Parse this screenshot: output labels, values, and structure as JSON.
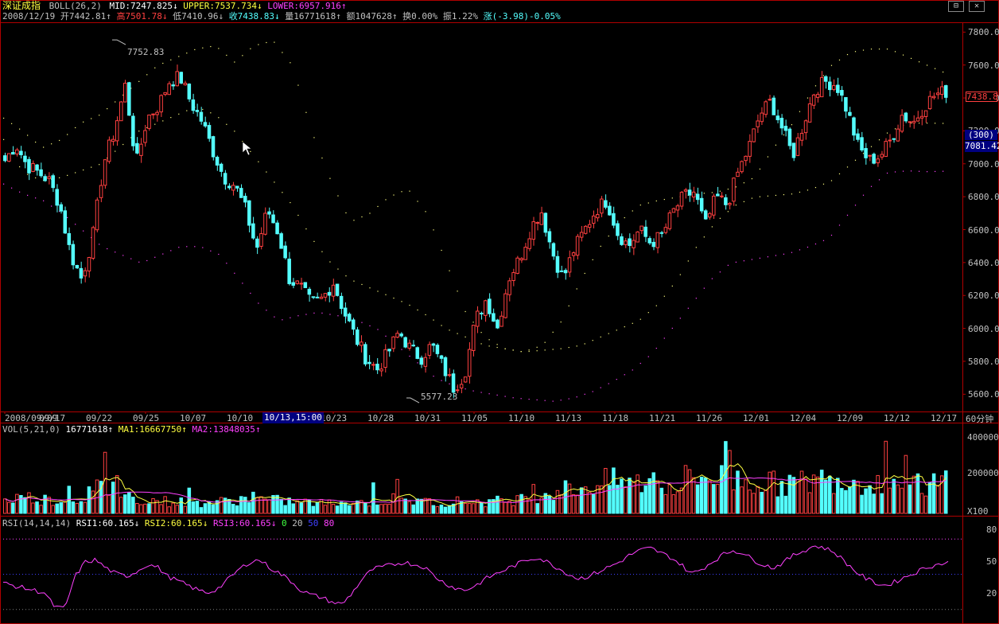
{
  "header": {
    "symbol": "深证成指",
    "indicator": "BOLL(26,2)",
    "mid_label": "MID:7247.825",
    "upper_label": "UPPER:7537.734",
    "lower_label": "LOWER:6957.916",
    "arrow_down": "↓",
    "arrow_up": "↑"
  },
  "info": {
    "date": "2008/12/19",
    "open": "开7442.81",
    "high": "高7501.78",
    "low": "低7410.96",
    "close": "收7438.83",
    "vol": "量16771618",
    "amount": "额1047628",
    "turnover": "换0.00%",
    "amplitude": "振1.22%",
    "change": "涨(-3.98)-0.05%",
    "arrow_down": "↓",
    "arrow_up": "↑"
  },
  "window_controls": {
    "restore": "⊟",
    "close": "✕"
  },
  "price_axis": {
    "ticks": [
      "7800.00",
      "7600.00",
      "7400.00",
      "7200.00",
      "7000.00",
      "6800.00",
      "6600.00",
      "6400.00",
      "6200.00",
      "6000.00",
      "5800.00",
      "5600.00"
    ],
    "current_price": "7438.8",
    "period_box": "(300)",
    "cursor_value": "7081.42"
  },
  "annotations": {
    "high_label": "7752.83",
    "low_label": "5577.23"
  },
  "date_axis": {
    "labels": [
      "2008/09/09",
      "09/17",
      "09/22",
      "09/25",
      "10/07",
      "10/10",
      "10/20",
      "10/23",
      "10/28",
      "10/31",
      "11/05",
      "11/10",
      "11/13",
      "11/18",
      "11/21",
      "11/26",
      "12/01",
      "12/04",
      "12/09",
      "12/12",
      "12/17"
    ],
    "cursor_label": "10/13,15:00",
    "period": "60分钟"
  },
  "volume_panel": {
    "label": "VOL(5,21,0)",
    "vol_value": "16771618",
    "ma1": "MA1:16667750",
    "ma2": "MA2:13848035",
    "arrow_up": "↑",
    "ticks": [
      "400000",
      "200000"
    ],
    "unit": "X100"
  },
  "rsi_panel": {
    "label": "RSI(14,14,14)",
    "rsi1": "RSI1:60.165",
    "rsi2": "RSI2:60.165",
    "rsi3": "RSI3:60.165",
    "arrow_down": "↓",
    "arrow_up": "↑",
    "lvl0": "0",
    "lvl20": "20",
    "lvl50": "50",
    "lvl80": "80",
    "ticks": [
      "80",
      "50",
      "20"
    ]
  },
  "colors": {
    "up": "#ff4040",
    "down": "#54ffff",
    "mid": "#ffff80",
    "upper": "#ffff80",
    "lower": "#ff40ff",
    "frame": "#b00000",
    "rsi": "#ff40ff",
    "ma1": "#ffff40",
    "ma2": "#ff40ff",
    "axis_text": "#c0c0c0",
    "label_yellow": "#ffff40",
    "label_magenta": "#ff40ff",
    "label_red": "#ff4040",
    "label_cyan": "#54ffff",
    "label_green": "#40ff40",
    "label_blue": "#4040ff"
  },
  "chart_data": {
    "type": "candlestick",
    "title": "深证成指 BOLL(26,2)",
    "period": "60分钟",
    "y_range": [
      5500,
      7850
    ],
    "date_labels": [
      "2008/09/09",
      "09/17",
      "09/22",
      "09/25",
      "10/07",
      "10/10",
      "10/20",
      "10/23",
      "10/28",
      "10/31",
      "11/05",
      "11/10",
      "11/13",
      "11/18",
      "11/21",
      "11/26",
      "12/01",
      "12/04",
      "12/09",
      "12/12",
      "12/17"
    ],
    "close_path": [
      7020,
      7120,
      6990,
      6950,
      6900,
      6750,
      6450,
      6300,
      6550,
      7000,
      7200,
      7480,
      7000,
      7280,
      7350,
      7500,
      7530,
      7370,
      7260,
      7080,
      6920,
      6870,
      6720,
      6480,
      6720,
      6580,
      6300,
      6250,
      6150,
      6180,
      6280,
      6100,
      5950,
      5820,
      5750,
      5850,
      5980,
      5880,
      5820,
      5900,
      5770,
      5640,
      5720,
      6050,
      6180,
      6000,
      6300,
      6420,
      6600,
      6720,
      6470,
      6300,
      6480,
      6600,
      6720,
      6780,
      6580,
      6500,
      6600,
      6520,
      6560,
      6700,
      6800,
      6830,
      6620,
      6800,
      6750,
      6950,
      7100,
      7300,
      7380,
      7220,
      7050,
      7250,
      7450,
      7500,
      7480,
      7320,
      7100,
      7020,
      7050,
      7150,
      7300,
      7250,
      7350,
      7420,
      7439
    ],
    "upper_path": [
      7280,
      7200,
      7100,
      7150,
      7250,
      7300,
      7400,
      7500,
      7600,
      7650,
      7700,
      7720,
      7620,
      7720,
      7750,
      7600,
      7200,
      6900,
      6650,
      6700,
      6800,
      6850,
      6700,
      6400,
      6100,
      5950,
      5880,
      5860,
      5900,
      6050,
      6300,
      6500,
      6650,
      6750,
      6780,
      6800,
      6820,
      6830,
      6860,
      6920,
      7100,
      7250,
      7450,
      7600,
      7680,
      7700,
      7700,
      7650,
      7600,
      7550
    ],
    "mid_path": [
      7150,
      6950,
      6900,
      6920,
      6960,
      7000,
      7100,
      7200,
      7250,
      7300,
      7350,
      7300,
      7200,
      7050,
      6900,
      6750,
      6550,
      6400,
      6300,
      6250,
      6200,
      6150,
      6080,
      6000,
      5950,
      5900,
      5880,
      5860,
      5870,
      5880,
      5900,
      5950,
      6000,
      6050,
      6150,
      6300,
      6500,
      6650,
      6750,
      6800,
      6810,
      6820,
      6850,
      6900,
      7000,
      7100,
      7200,
      7250,
      7250,
      7248
    ],
    "lower_path": [
      6880,
      6820,
      6780,
      6700,
      6600,
      6500,
      6450,
      6400,
      6450,
      6500,
      6500,
      6450,
      6300,
      6150,
      6050,
      6080,
      6100,
      6080,
      6050,
      6000,
      5900,
      5800,
      5700,
      5650,
      5620,
      5600,
      5580,
      5570,
      5560,
      5580,
      5620,
      5680,
      5750,
      5850,
      6000,
      6150,
      6300,
      6400,
      6420,
      6440,
      6460,
      6500,
      6550,
      6700,
      6850,
      6950,
      6960,
      6955,
      6958
    ],
    "annotations": [
      {
        "label": "7752.83",
        "value": 7752.83
      },
      {
        "label": "5577.23",
        "value": 5577.23
      }
    ],
    "volume_range": [
      0,
      420000
    ],
    "rsi_range": [
      10,
      90
    ],
    "rsi_path": [
      42,
      40,
      38,
      36,
      34,
      22,
      20,
      48,
      60,
      62,
      55,
      50,
      48,
      52,
      58,
      56,
      48,
      44,
      40,
      36,
      34,
      38,
      46,
      54,
      60,
      62,
      55,
      50,
      44,
      36,
      32,
      30,
      26,
      24,
      34,
      46,
      54,
      56,
      58,
      60,
      58,
      56,
      48,
      42,
      38,
      36,
      40,
      46,
      50,
      54,
      58,
      62,
      64,
      60,
      55,
      50,
      46,
      48,
      52,
      56,
      60,
      66,
      70,
      72,
      68,
      64,
      58,
      50,
      54,
      60,
      66,
      70,
      68,
      62,
      58,
      55,
      60,
      66,
      70,
      74,
      72,
      68,
      60,
      52,
      46,
      42,
      40,
      44,
      48,
      52,
      56,
      58,
      60
    ]
  }
}
